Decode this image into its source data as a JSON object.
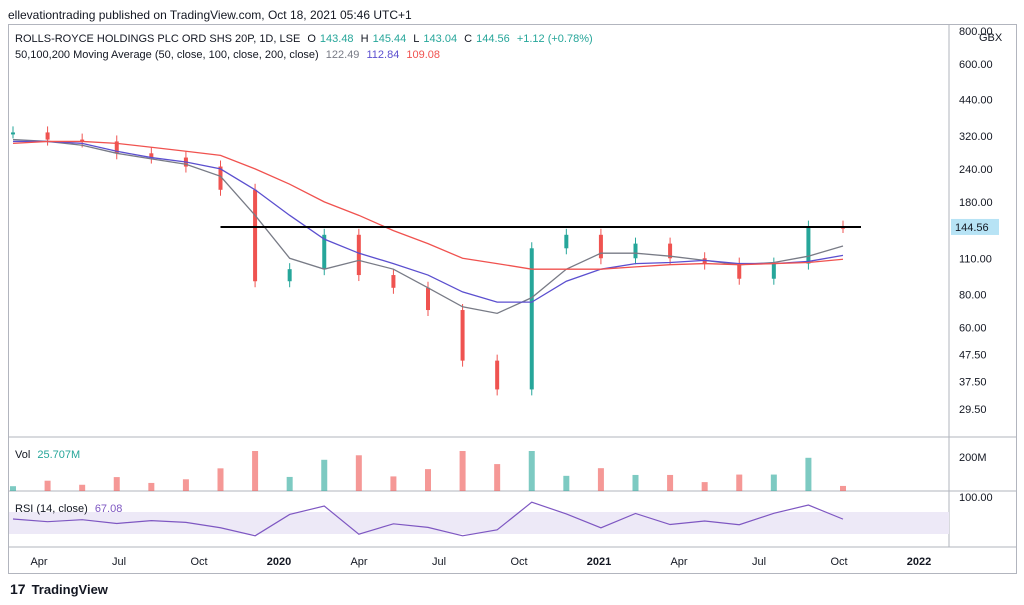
{
  "header": {
    "publish_line": "ellevationtrading published on TradingView.com, Oct 18, 2021 05:46 UTC+1"
  },
  "legend": {
    "title": "ROLLS-ROYCE HOLDINGS PLC ORD SHS 20P, 1D, LSE",
    "ohlc": {
      "o_label": "O",
      "o": "143.48",
      "h_label": "H",
      "h": "145.44",
      "l_label": "L",
      "l": "143.04",
      "c_label": "C",
      "c": "144.56",
      "chg": "+1.12 (+0.78%)"
    },
    "ma_line": "50,100,200 Moving Average (50, close, 100, close, 200, close)",
    "ma_values": [
      "122.49",
      "112.84",
      "109.08"
    ],
    "vol_label": "Vol",
    "vol_value": "25.707M",
    "rsi_label": "RSI (14, close)",
    "rsi_value": "67.08"
  },
  "colors": {
    "up": "#26a69a",
    "down": "#ef5350",
    "ma50": "#787b86",
    "ma100": "#5b4fcf",
    "ma200": "#f0524f",
    "resistance": "#000000",
    "rsi": "#7e57c2",
    "price_tag_bg": "#b7e3f5"
  },
  "axes": {
    "currency": "GBX",
    "price_ticks": [
      "800.00",
      "600.00",
      "440.00",
      "320.00",
      "240.00",
      "180.00",
      "110.00",
      "80.00",
      "60.00",
      "47.50",
      "37.50",
      "29.50"
    ],
    "current_price": "144.56",
    "volume_tick": "200M",
    "rsi_tick": "100.00",
    "time_ticks": [
      "Apr",
      "Jul",
      "Oct",
      "2020",
      "Apr",
      "Jul",
      "Oct",
      "2021",
      "Apr",
      "Jul",
      "Oct",
      "2022"
    ]
  },
  "footer": {
    "brand": "TradingView"
  },
  "chart_data": {
    "type": "line",
    "scale": "log",
    "ylim": [
      29.5,
      800
    ],
    "resistance_level": 144.56,
    "series": [
      {
        "name": "Price",
        "x": [
          "2019-03",
          "2019-04",
          "2019-07",
          "2019-10",
          "2020-01",
          "2020-02",
          "2020-03",
          "2020-04",
          "2020-05",
          "2020-06",
          "2020-07",
          "2020-08",
          "2020-09",
          "2020-10",
          "2020-10-28",
          "2020-11",
          "2020-12",
          "2021-01",
          "2021-03",
          "2021-04",
          "2021-06",
          "2021-07",
          "2021-08",
          "2021-09",
          "2021-10"
        ],
        "values": [
          330,
          310,
          305,
          275,
          265,
          245,
          200,
          90,
          100,
          135,
          95,
          85,
          70,
          45,
          35,
          120,
          135,
          110,
          125,
          110,
          105,
          92,
          105,
          145,
          144.56
        ]
      },
      {
        "name": "MA 50",
        "values": [
          310,
          305,
          295,
          275,
          262,
          250,
          225,
          160,
          110,
          100,
          108,
          100,
          85,
          72,
          68,
          78,
          100,
          115,
          115,
          112,
          108,
          104,
          106,
          112,
          122.49
        ]
      },
      {
        "name": "MA 100",
        "values": [
          305,
          305,
          300,
          280,
          265,
          255,
          240,
          200,
          160,
          130,
          115,
          105,
          95,
          82,
          75,
          75,
          90,
          100,
          105,
          106,
          108,
          105,
          105,
          107,
          112.84
        ]
      },
      {
        "name": "MA 200",
        "values": [
          300,
          305,
          305,
          300,
          290,
          280,
          270,
          240,
          210,
          180,
          160,
          140,
          125,
          110,
          105,
          100,
          100,
          100,
          102,
          104,
          105,
          104,
          105,
          106,
          109.08
        ]
      }
    ]
  }
}
